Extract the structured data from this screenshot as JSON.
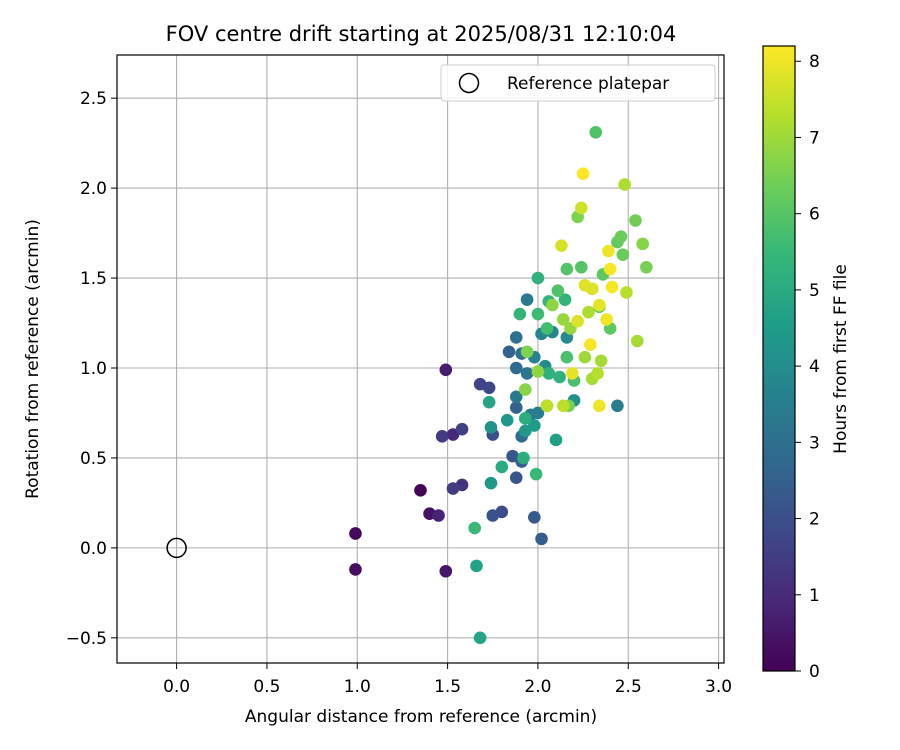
{
  "chart_data": {
    "type": "scatter",
    "title": "FOV centre drift starting at 2025/08/31 12:10:04",
    "xlabel": "Angular distance from reference (arcmin)",
    "ylabel": "Rotation from reference (arcmin)",
    "xlim": [
      -0.33,
      3.03
    ],
    "ylim": [
      -0.64,
      2.74
    ],
    "xticks": [
      0.0,
      0.5,
      1.0,
      1.5,
      2.0,
      2.5,
      3.0
    ],
    "xtick_labels": [
      "0.0",
      "0.5",
      "1.0",
      "1.5",
      "2.0",
      "2.5",
      "3.0"
    ],
    "yticks": [
      -0.5,
      0.0,
      0.5,
      1.0,
      1.5,
      2.0,
      2.5
    ],
    "ytick_labels": [
      "−0.5",
      "0.0",
      "0.5",
      "1.0",
      "1.5",
      "2.0",
      "2.5"
    ],
    "grid": true,
    "legend": {
      "position": "top-right",
      "entries": [
        "Reference platepar"
      ]
    },
    "reference_point": {
      "x": 0.0,
      "y": 0.0,
      "label": "Reference platepar",
      "marker": "open-circle"
    },
    "colorbar": {
      "label": "Hours from first FF file",
      "colormap": "viridis",
      "min": 0,
      "max": 8.2,
      "ticks": [
        0,
        1,
        2,
        3,
        4,
        5,
        6,
        7,
        8
      ],
      "tick_labels": [
        "0",
        "1",
        "2",
        "3",
        "4",
        "5",
        "6",
        "7",
        "8"
      ],
      "stops": [
        "#440154",
        "#482878",
        "#3e4989",
        "#31688e",
        "#26828e",
        "#1f9e89",
        "#35b779",
        "#6ece58",
        "#b5de2b",
        "#fde725"
      ]
    },
    "series": [
      {
        "points": [
          {
            "x": 1.35,
            "y": 0.32,
            "c": 0.1
          },
          {
            "x": 0.99,
            "y": 0.08,
            "c": 0.2
          },
          {
            "x": 0.99,
            "y": -0.12,
            "c": 0.3
          },
          {
            "x": 1.4,
            "y": 0.19,
            "c": 0.4
          },
          {
            "x": 1.49,
            "y": -0.13,
            "c": 0.5
          },
          {
            "x": 1.49,
            "y": 0.99,
            "c": 0.6
          },
          {
            "x": 1.45,
            "y": 0.18,
            "c": 0.8
          },
          {
            "x": 1.53,
            "y": 0.63,
            "c": 0.9
          },
          {
            "x": 1.58,
            "y": 0.35,
            "c": 1.2
          },
          {
            "x": 1.47,
            "y": 0.62,
            "c": 1.4
          },
          {
            "x": 1.53,
            "y": 0.33,
            "c": 1.5
          },
          {
            "x": 1.58,
            "y": 0.66,
            "c": 1.6
          },
          {
            "x": 1.68,
            "y": 0.91,
            "c": 1.7
          },
          {
            "x": 1.73,
            "y": 0.89,
            "c": 1.8
          },
          {
            "x": 1.8,
            "y": 0.2,
            "c": 1.9
          },
          {
            "x": 1.75,
            "y": 0.63,
            "c": 2.0
          },
          {
            "x": 1.75,
            "y": 0.18,
            "c": 2.1
          },
          {
            "x": 1.86,
            "y": 0.51,
            "c": 2.2
          },
          {
            "x": 1.88,
            "y": 0.39,
            "c": 2.2
          },
          {
            "x": 1.98,
            "y": 0.17,
            "c": 2.3
          },
          {
            "x": 2.02,
            "y": 0.05,
            "c": 2.4
          },
          {
            "x": 1.91,
            "y": 0.48,
            "c": 2.5
          },
          {
            "x": 1.88,
            "y": 0.78,
            "c": 2.6
          },
          {
            "x": 1.84,
            "y": 1.09,
            "c": 2.6
          },
          {
            "x": 1.88,
            "y": 1.0,
            "c": 2.8
          },
          {
            "x": 1.91,
            "y": 0.62,
            "c": 2.9
          },
          {
            "x": 1.88,
            "y": 1.17,
            "c": 3.0
          },
          {
            "x": 1.91,
            "y": 1.08,
            "c": 3.1
          },
          {
            "x": 1.94,
            "y": 0.97,
            "c": 3.2
          },
          {
            "x": 1.88,
            "y": 0.84,
            "c": 3.3
          },
          {
            "x": 1.94,
            "y": 1.38,
            "c": 3.3
          },
          {
            "x": 1.96,
            "y": 0.74,
            "c": 3.4
          },
          {
            "x": 2.0,
            "y": 0.75,
            "c": 3.5
          },
          {
            "x": 1.98,
            "y": 1.06,
            "c": 3.6
          },
          {
            "x": 2.02,
            "y": 1.19,
            "c": 3.7
          },
          {
            "x": 2.08,
            "y": 1.2,
            "c": 3.8
          },
          {
            "x": 2.16,
            "y": 1.17,
            "c": 3.9
          },
          {
            "x": 2.04,
            "y": 1.01,
            "c": 4.0
          },
          {
            "x": 2.2,
            "y": 0.82,
            "c": 4.1
          },
          {
            "x": 2.44,
            "y": 0.79,
            "c": 3.5
          },
          {
            "x": 1.74,
            "y": 0.67,
            "c": 4.2
          },
          {
            "x": 1.83,
            "y": 0.71,
            "c": 4.3
          },
          {
            "x": 1.74,
            "y": 0.36,
            "c": 4.4
          },
          {
            "x": 1.93,
            "y": 0.65,
            "c": 4.4
          },
          {
            "x": 1.98,
            "y": 0.68,
            "c": 4.5
          },
          {
            "x": 2.1,
            "y": 0.6,
            "c": 4.6
          },
          {
            "x": 2.05,
            "y": 0.79,
            "c": 4.7
          },
          {
            "x": 1.73,
            "y": 0.81,
            "c": 4.8
          },
          {
            "x": 1.66,
            "y": -0.1,
            "c": 4.7
          },
          {
            "x": 1.68,
            "y": -0.5,
            "c": 4.8
          },
          {
            "x": 1.8,
            "y": 0.45,
            "c": 5.0
          },
          {
            "x": 1.92,
            "y": 0.5,
            "c": 5.1
          },
          {
            "x": 1.93,
            "y": 0.72,
            "c": 5.1
          },
          {
            "x": 2.06,
            "y": 0.97,
            "c": 5.2
          },
          {
            "x": 2.12,
            "y": 0.95,
            "c": 5.2
          },
          {
            "x": 2.0,
            "y": 1.5,
            "c": 5.3
          },
          {
            "x": 2.06,
            "y": 1.37,
            "c": 5.4
          },
          {
            "x": 1.9,
            "y": 1.3,
            "c": 5.4
          },
          {
            "x": 2.15,
            "y": 1.38,
            "c": 5.4
          },
          {
            "x": 1.99,
            "y": 0.41,
            "c": 5.5
          },
          {
            "x": 1.65,
            "y": 0.11,
            "c": 5.5
          },
          {
            "x": 2.0,
            "y": 1.3,
            "c": 5.6
          },
          {
            "x": 2.05,
            "y": 1.22,
            "c": 5.7
          },
          {
            "x": 2.16,
            "y": 1.06,
            "c": 5.8
          },
          {
            "x": 2.2,
            "y": 0.93,
            "c": 5.8
          },
          {
            "x": 2.11,
            "y": 1.43,
            "c": 5.9
          },
          {
            "x": 2.16,
            "y": 1.55,
            "c": 6.0
          },
          {
            "x": 2.24,
            "y": 1.56,
            "c": 6.0
          },
          {
            "x": 2.3,
            "y": 1.44,
            "c": 6.1
          },
          {
            "x": 2.34,
            "y": 1.34,
            "c": 6.2
          },
          {
            "x": 2.32,
            "y": 2.31,
            "c": 5.9
          },
          {
            "x": 2.36,
            "y": 1.52,
            "c": 6.1
          },
          {
            "x": 2.4,
            "y": 1.22,
            "c": 6.1
          },
          {
            "x": 2.44,
            "y": 1.7,
            "c": 6.2
          },
          {
            "x": 2.46,
            "y": 1.73,
            "c": 6.3
          },
          {
            "x": 2.47,
            "y": 1.63,
            "c": 6.3
          },
          {
            "x": 2.54,
            "y": 1.82,
            "c": 6.4
          },
          {
            "x": 2.6,
            "y": 1.56,
            "c": 6.5
          },
          {
            "x": 2.58,
            "y": 1.69,
            "c": 6.7
          },
          {
            "x": 2.22,
            "y": 1.84,
            "c": 6.6
          },
          {
            "x": 2.17,
            "y": 0.79,
            "c": 6.5
          },
          {
            "x": 1.94,
            "y": 1.09,
            "c": 6.6
          },
          {
            "x": 1.93,
            "y": 0.88,
            "c": 6.7
          },
          {
            "x": 2.0,
            "y": 0.98,
            "c": 6.8
          },
          {
            "x": 2.08,
            "y": 1.35,
            "c": 6.8
          },
          {
            "x": 2.14,
            "y": 1.27,
            "c": 6.9
          },
          {
            "x": 2.18,
            "y": 1.22,
            "c": 6.9
          },
          {
            "x": 2.26,
            "y": 1.06,
            "c": 7.0
          },
          {
            "x": 2.3,
            "y": 0.94,
            "c": 7.1
          },
          {
            "x": 2.35,
            "y": 1.04,
            "c": 7.1
          },
          {
            "x": 2.55,
            "y": 1.15,
            "c": 7.1
          },
          {
            "x": 2.48,
            "y": 2.02,
            "c": 7.2
          },
          {
            "x": 2.28,
            "y": 1.31,
            "c": 7.2
          },
          {
            "x": 2.33,
            "y": 0.97,
            "c": 7.3
          },
          {
            "x": 2.05,
            "y": 0.79,
            "c": 7.4
          },
          {
            "x": 2.14,
            "y": 0.79,
            "c": 7.4
          },
          {
            "x": 2.24,
            "y": 1.89,
            "c": 7.6
          },
          {
            "x": 2.13,
            "y": 1.68,
            "c": 7.7
          },
          {
            "x": 2.22,
            "y": 1.26,
            "c": 7.8
          },
          {
            "x": 2.26,
            "y": 1.46,
            "c": 7.8
          },
          {
            "x": 2.3,
            "y": 1.44,
            "c": 7.8
          },
          {
            "x": 2.34,
            "y": 1.35,
            "c": 7.9
          },
          {
            "x": 2.38,
            "y": 1.27,
            "c": 8.0
          },
          {
            "x": 2.39,
            "y": 1.65,
            "c": 8.0
          },
          {
            "x": 2.4,
            "y": 1.55,
            "c": 8.1
          },
          {
            "x": 2.41,
            "y": 1.45,
            "c": 8.1
          },
          {
            "x": 2.29,
            "y": 1.13,
            "c": 8.1
          },
          {
            "x": 2.34,
            "y": 0.79,
            "c": 8.0
          },
          {
            "x": 2.25,
            "y": 2.08,
            "c": 8.2
          },
          {
            "x": 2.19,
            "y": 0.97,
            "c": 7.9
          },
          {
            "x": 2.49,
            "y": 1.42,
            "c": 7.3
          }
        ]
      }
    ]
  }
}
